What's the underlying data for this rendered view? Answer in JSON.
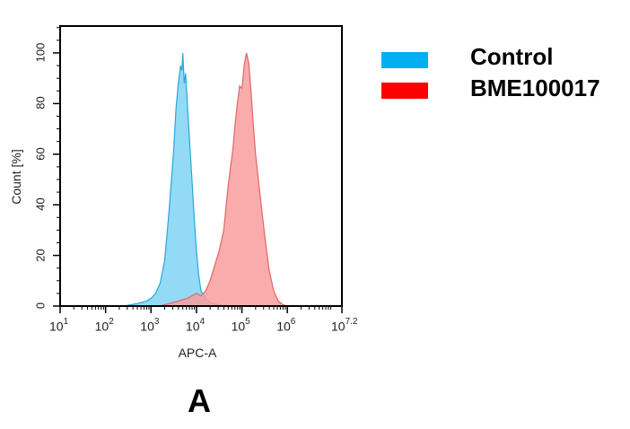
{
  "chart_data": {
    "type": "area",
    "title": "",
    "xlabel": "APC-A",
    "ylabel": "Count [%]",
    "xscale": "log",
    "xlim_log10": [
      1,
      7.2
    ],
    "ylim": [
      0,
      110
    ],
    "x_ticks": [
      {
        "base": "10",
        "exp": "1",
        "log": 1
      },
      {
        "base": "10",
        "exp": "2",
        "log": 2
      },
      {
        "base": "10",
        "exp": "3",
        "log": 3
      },
      {
        "base": "10",
        "exp": "4",
        "log": 4
      },
      {
        "base": "10",
        "exp": "5",
        "log": 5
      },
      {
        "base": "10",
        "exp": "6",
        "log": 6
      },
      {
        "base": "10",
        "exp": "7.2",
        "log": 7.2
      }
    ],
    "y_ticks": [
      0,
      20,
      40,
      60,
      80,
      100
    ],
    "grid": false,
    "legend_position": "right",
    "panel_label": "A",
    "series": [
      {
        "name": "Control",
        "color": "#00b0f0",
        "fill": "#7fd3f3",
        "line": "#2aa7d8",
        "peak_log10": 3.7,
        "points": [
          [
            2.4,
            0
          ],
          [
            2.7,
            1
          ],
          [
            2.9,
            2
          ],
          [
            3.0,
            3
          ],
          [
            3.1,
            5
          ],
          [
            3.2,
            9
          ],
          [
            3.3,
            18
          ],
          [
            3.4,
            38
          ],
          [
            3.5,
            62
          ],
          [
            3.55,
            78
          ],
          [
            3.6,
            88
          ],
          [
            3.65,
            95
          ],
          [
            3.68,
            93
          ],
          [
            3.7,
            100
          ],
          [
            3.73,
            88
          ],
          [
            3.76,
            92
          ],
          [
            3.8,
            80
          ],
          [
            3.85,
            65
          ],
          [
            3.9,
            50
          ],
          [
            3.95,
            35
          ],
          [
            4.0,
            22
          ],
          [
            4.05,
            12
          ],
          [
            4.1,
            6
          ],
          [
            4.2,
            3
          ],
          [
            4.3,
            1.5
          ],
          [
            4.5,
            0.5
          ],
          [
            4.8,
            0
          ]
        ]
      },
      {
        "name": "BME100017",
        "color": "#ff0000",
        "fill": "#f99d9d",
        "line": "#e06666",
        "peak_log10": 5.1,
        "points": [
          [
            3.2,
            0
          ],
          [
            3.4,
            1
          ],
          [
            3.6,
            2
          ],
          [
            3.8,
            3
          ],
          [
            3.9,
            4
          ],
          [
            4.0,
            5
          ],
          [
            4.1,
            4
          ],
          [
            4.2,
            6
          ],
          [
            4.3,
            10
          ],
          [
            4.4,
            16
          ],
          [
            4.5,
            22
          ],
          [
            4.6,
            30
          ],
          [
            4.7,
            48
          ],
          [
            4.8,
            62
          ],
          [
            4.85,
            72
          ],
          [
            4.9,
            80
          ],
          [
            4.95,
            87
          ],
          [
            5.0,
            86
          ],
          [
            5.05,
            95
          ],
          [
            5.1,
            100
          ],
          [
            5.15,
            96
          ],
          [
            5.2,
            85
          ],
          [
            5.25,
            72
          ],
          [
            5.3,
            60
          ],
          [
            5.4,
            44
          ],
          [
            5.5,
            28
          ],
          [
            5.6,
            14
          ],
          [
            5.7,
            6
          ],
          [
            5.8,
            2
          ],
          [
            5.9,
            0.5
          ],
          [
            6.0,
            0
          ]
        ]
      }
    ]
  },
  "legend": {
    "items": [
      {
        "label": "Control",
        "color": "#00b0f0"
      },
      {
        "label": "BME100017",
        "color": "#ff0000"
      }
    ]
  }
}
